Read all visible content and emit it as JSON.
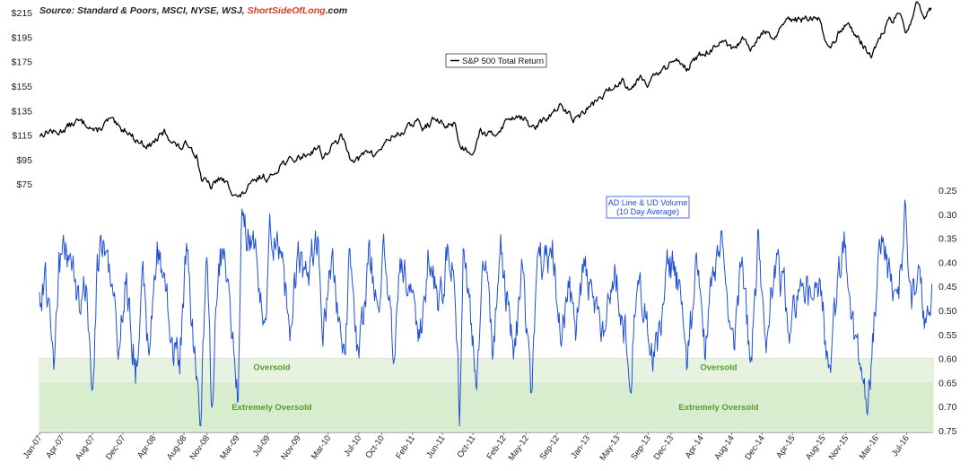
{
  "source": {
    "prefix": "Source: Standard & Poors, MSCI, NYSE, WSJ,",
    "brand": "ShortSideOfLong",
    "suffix": ".com",
    "brand_color": "#e03c1f"
  },
  "chart_data": [
    {
      "type": "line",
      "legend": "S&P 500 Total Return",
      "legend_position": "top-center",
      "color": "#000000",
      "y_ticks": [
        "$215",
        "$195",
        "$175",
        "$155",
        "$135",
        "$115",
        "$95",
        "$75"
      ],
      "y_tick_values": [
        215,
        195,
        175,
        155,
        135,
        115,
        95,
        75
      ],
      "ylim": [
        70,
        218
      ],
      "series": [
        {
          "points": [
            [
              "2007-01-01",
              115
            ],
            [
              "2007-02-15",
              119
            ],
            [
              "2007-03-10",
              116
            ],
            [
              "2007-04-15",
              121
            ],
            [
              "2007-06-01",
              126
            ],
            [
              "2007-07-15",
              124
            ],
            [
              "2007-08-15",
              117
            ],
            [
              "2007-10-10",
              128
            ],
            [
              "2007-11-20",
              119
            ],
            [
              "2007-12-15",
              120
            ],
            [
              "2008-01-20",
              111
            ],
            [
              "2008-03-15",
              106
            ],
            [
              "2008-05-15",
              117
            ],
            [
              "2008-07-15",
              104
            ],
            [
              "2008-08-20",
              108
            ],
            [
              "2008-09-20",
              99
            ],
            [
              "2008-10-10",
              80
            ],
            [
              "2008-11-20",
              72
            ],
            [
              "2008-12-20",
              80
            ],
            [
              "2009-01-20",
              75
            ],
            [
              "2009-03-09",
              63
            ],
            [
              "2009-04-15",
              72
            ],
            [
              "2009-06-10",
              82
            ],
            [
              "2009-07-10",
              79
            ],
            [
              "2009-08-25",
              92
            ],
            [
              "2009-10-20",
              95
            ],
            [
              "2009-12-20",
              101
            ],
            [
              "2010-01-20",
              106
            ],
            [
              "2010-02-10",
              97
            ],
            [
              "2010-04-23",
              114
            ],
            [
              "2010-05-25",
              98
            ],
            [
              "2010-07-01",
              95
            ],
            [
              "2010-08-10",
              103
            ],
            [
              "2010-08-30",
              98
            ],
            [
              "2010-11-05",
              113
            ],
            [
              "2010-12-30",
              118
            ],
            [
              "2011-02-18",
              127
            ],
            [
              "2011-03-16",
              120
            ],
            [
              "2011-04-29",
              128
            ],
            [
              "2011-06-15",
              122
            ],
            [
              "2011-07-22",
              126
            ],
            [
              "2011-08-10",
              105
            ],
            [
              "2011-10-03",
              102
            ],
            [
              "2011-10-28",
              119
            ],
            [
              "2011-12-20",
              114
            ],
            [
              "2012-02-20",
              128
            ],
            [
              "2012-04-02",
              132
            ],
            [
              "2012-06-01",
              120
            ],
            [
              "2012-09-14",
              138
            ],
            [
              "2012-11-15",
              128
            ],
            [
              "2013-01-25",
              141
            ],
            [
              "2013-05-21",
              160
            ],
            [
              "2013-06-24",
              153
            ],
            [
              "2013-08-02",
              164
            ],
            [
              "2013-08-30",
              158
            ],
            [
              "2013-12-31",
              178
            ],
            [
              "2014-02-03",
              170
            ],
            [
              "2014-04-02",
              181
            ],
            [
              "2014-06-30",
              190
            ],
            [
              "2014-08-07",
              184
            ],
            [
              "2014-09-18",
              194
            ],
            [
              "2014-10-15",
              182
            ],
            [
              "2014-12-05",
              200
            ],
            [
              "2015-01-15",
              193
            ],
            [
              "2015-03-02",
              207
            ],
            [
              "2015-05-20",
              210
            ],
            [
              "2015-07-20",
              210
            ],
            [
              "2015-08-25",
              184
            ],
            [
              "2015-11-03",
              208
            ],
            [
              "2015-12-15",
              195
            ],
            [
              "2016-02-11",
              180
            ],
            [
              "2016-04-20",
              208
            ],
            [
              "2016-06-08",
              212
            ],
            [
              "2016-06-27",
              198
            ],
            [
              "2016-08-15",
              223
            ],
            [
              "2016-09-09",
              212
            ],
            [
              "2016-10-10",
              220
            ]
          ]
        }
      ]
    },
    {
      "type": "line",
      "title": "AD Line & UD Volume\n(10 Day Average)",
      "color": "#1f4fd8",
      "y_axis": "inverted",
      "y_ticks": [
        "0.25",
        "0.30",
        "0.35",
        "0.40",
        "0.45",
        "0.50",
        "0.55",
        "0.60",
        "0.65",
        "0.70",
        "0.75"
      ],
      "y_tick_values": [
        0.25,
        0.3,
        0.35,
        0.4,
        0.45,
        0.5,
        0.55,
        0.6,
        0.65,
        0.7,
        0.75
      ],
      "ylim": [
        0.25,
        0.75
      ],
      "bands": [
        {
          "label": "Oversold",
          "from": 0.6,
          "to": 0.75,
          "color": "#e7f3e0"
        },
        {
          "label": "Extremely Oversold",
          "from": 0.65,
          "to": 0.75,
          "color": "#d8edcd"
        }
      ],
      "band_label_color": "#5a9a2e",
      "series": [
        {
          "points": [
            [
              "2007-01-01",
              0.48
            ],
            [
              "2007-01-20",
              0.44
            ],
            [
              "2007-02-10",
              0.47
            ],
            [
              "2007-03-01",
              0.61
            ],
            [
              "2007-03-20",
              0.4
            ],
            [
              "2007-04-20",
              0.38
            ],
            [
              "2007-05-20",
              0.42
            ],
            [
              "2007-06-15",
              0.5
            ],
            [
              "2007-07-10",
              0.46
            ],
            [
              "2007-08-01",
              0.67
            ],
            [
              "2007-08-20",
              0.4
            ],
            [
              "2007-09-15",
              0.36
            ],
            [
              "2007-10-15",
              0.44
            ],
            [
              "2007-11-15",
              0.58
            ],
            [
              "2007-12-15",
              0.42
            ],
            [
              "2008-01-20",
              0.62
            ],
            [
              "2008-02-20",
              0.45
            ],
            [
              "2008-03-15",
              0.6
            ],
            [
              "2008-04-15",
              0.38
            ],
            [
              "2008-05-15",
              0.44
            ],
            [
              "2008-06-15",
              0.58
            ],
            [
              "2008-07-15",
              0.6
            ],
            [
              "2008-08-10",
              0.37
            ],
            [
              "2008-09-15",
              0.62
            ],
            [
              "2008-10-10",
              0.72
            ],
            [
              "2008-10-30",
              0.34
            ],
            [
              "2008-11-20",
              0.72
            ],
            [
              "2008-12-15",
              0.4
            ],
            [
              "2009-01-10",
              0.36
            ],
            [
              "2009-02-10",
              0.55
            ],
            [
              "2009-03-05",
              0.68
            ],
            [
              "2009-03-20",
              0.32
            ],
            [
              "2009-05-10",
              0.37
            ],
            [
              "2009-06-20",
              0.56
            ],
            [
              "2009-07-10",
              0.33
            ],
            [
              "2009-08-15",
              0.36
            ],
            [
              "2009-10-01",
              0.55
            ],
            [
              "2009-11-01",
              0.38
            ],
            [
              "2009-12-01",
              0.44
            ],
            [
              "2010-01-20",
              0.34
            ],
            [
              "2010-02-05",
              0.55
            ],
            [
              "2010-03-15",
              0.4
            ],
            [
              "2010-05-07",
              0.62
            ],
            [
              "2010-05-25",
              0.37
            ],
            [
              "2010-07-01",
              0.63
            ],
            [
              "2010-08-10",
              0.39
            ],
            [
              "2010-09-15",
              0.47
            ],
            [
              "2010-10-15",
              0.37
            ],
            [
              "2010-11-15",
              0.58
            ],
            [
              "2010-12-15",
              0.4
            ],
            [
              "2011-01-20",
              0.45
            ],
            [
              "2011-03-01",
              0.58
            ],
            [
              "2011-04-05",
              0.38
            ],
            [
              "2011-05-20",
              0.5
            ],
            [
              "2011-06-20",
              0.38
            ],
            [
              "2011-07-20",
              0.44
            ],
            [
              "2011-08-09",
              0.73
            ],
            [
              "2011-08-25",
              0.36
            ],
            [
              "2011-09-25",
              0.55
            ],
            [
              "2011-10-15",
              0.62
            ],
            [
              "2011-11-15",
              0.4
            ],
            [
              "2011-12-20",
              0.58
            ],
            [
              "2012-01-20",
              0.37
            ],
            [
              "2012-03-15",
              0.6
            ],
            [
              "2012-04-15",
              0.42
            ],
            [
              "2012-05-20",
              0.68
            ],
            [
              "2012-06-20",
              0.4
            ],
            [
              "2012-08-15",
              0.38
            ],
            [
              "2012-09-15",
              0.55
            ],
            [
              "2012-10-20",
              0.44
            ],
            [
              "2012-11-15",
              0.54
            ],
            [
              "2012-12-20",
              0.42
            ],
            [
              "2013-02-01",
              0.48
            ],
            [
              "2013-03-15",
              0.55
            ],
            [
              "2013-04-20",
              0.42
            ],
            [
              "2013-06-24",
              0.62
            ],
            [
              "2013-07-20",
              0.4
            ],
            [
              "2013-08-30",
              0.55
            ],
            [
              "2013-10-09",
              0.6
            ],
            [
              "2013-11-20",
              0.4
            ],
            [
              "2014-01-15",
              0.46
            ],
            [
              "2014-02-03",
              0.62
            ],
            [
              "2014-03-15",
              0.4
            ],
            [
              "2014-04-15",
              0.58
            ],
            [
              "2014-05-20",
              0.42
            ],
            [
              "2014-06-20",
              0.38
            ],
            [
              "2014-08-07",
              0.6
            ],
            [
              "2014-09-10",
              0.38
            ],
            [
              "2014-10-15",
              0.62
            ],
            [
              "2014-11-15",
              0.36
            ],
            [
              "2014-12-16",
              0.56
            ],
            [
              "2015-01-20",
              0.4
            ],
            [
              "2015-03-01",
              0.46
            ],
            [
              "2015-03-25",
              0.56
            ],
            [
              "2015-05-01",
              0.42
            ],
            [
              "2015-06-15",
              0.5
            ],
            [
              "2015-07-20",
              0.42
            ],
            [
              "2015-08-25",
              0.66
            ],
            [
              "2015-09-20",
              0.5
            ],
            [
              "2015-10-25",
              0.34
            ],
            [
              "2015-11-20",
              0.52
            ],
            [
              "2016-01-20",
              0.7
            ],
            [
              "2016-02-11",
              0.62
            ],
            [
              "2016-03-15",
              0.34
            ],
            [
              "2016-04-20",
              0.42
            ],
            [
              "2016-05-20",
              0.52
            ],
            [
              "2016-06-27",
              0.3
            ],
            [
              "2016-07-20",
              0.48
            ],
            [
              "2016-08-20",
              0.4
            ],
            [
              "2016-09-15",
              0.52
            ],
            [
              "2016-10-10",
              0.46
            ]
          ]
        }
      ]
    }
  ],
  "x_axis": {
    "start": "2007-01-01",
    "end": "2016-10-15",
    "tick_labels": [
      "Jan-07",
      "Apr-07",
      "Aug-07",
      "Dec-07",
      "Apr-08",
      "Aug-08",
      "Nov-08",
      "Mar-09",
      "Jul-09",
      "Nov-09",
      "Mar-10",
      "Jul-10",
      "Oct-10",
      "Feb-11",
      "Jun-11",
      "Oct-11",
      "Feb-12",
      "May-12",
      "Sep-12",
      "Jan-13",
      "May-13",
      "Sep-13",
      "Dec-13",
      "Apr-14",
      "Aug-14",
      "Dec-14",
      "Apr-15",
      "Aug-15",
      "Nov-15",
      "Mar-16",
      "Jul-16"
    ],
    "tick_dates": [
      "2007-01-01",
      "2007-04-01",
      "2007-08-01",
      "2007-12-01",
      "2008-04-01",
      "2008-08-01",
      "2008-11-01",
      "2009-03-01",
      "2009-07-01",
      "2009-11-01",
      "2010-03-01",
      "2010-07-01",
      "2010-10-01",
      "2011-02-01",
      "2011-06-01",
      "2011-10-01",
      "2012-02-01",
      "2012-05-01",
      "2012-09-01",
      "2013-01-01",
      "2013-05-01",
      "2013-09-01",
      "2013-12-01",
      "2014-04-01",
      "2014-08-01",
      "2014-12-01",
      "2015-04-01",
      "2015-08-01",
      "2015-11-01",
      "2016-03-01",
      "2016-07-01"
    ]
  }
}
